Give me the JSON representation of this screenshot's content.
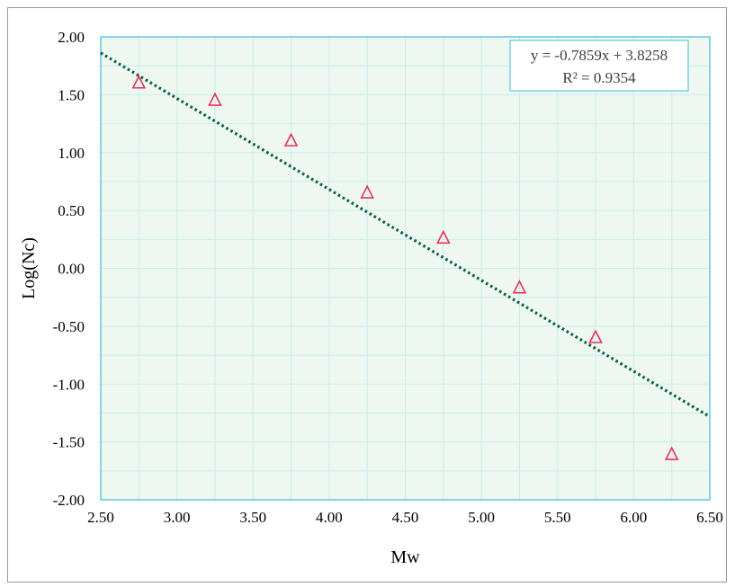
{
  "chart_data": {
    "type": "scatter",
    "title": "",
    "xlabel": "Mw",
    "ylabel": "Log(Nc)",
    "xlim": [
      2.5,
      6.5
    ],
    "ylim": [
      -2.0,
      2.0
    ],
    "x_ticks": [
      "2.50",
      "3.00",
      "3.50",
      "4.00",
      "4.50",
      "5.00",
      "5.50",
      "6.00",
      "6.50"
    ],
    "y_ticks": [
      "2.00",
      "1.50",
      "1.00",
      "0.50",
      "0.00",
      "-0.50",
      "-1.00",
      "-1.50",
      "-2.00"
    ],
    "grid": true,
    "series": [
      {
        "marker": "triangle-open",
        "color": "#e8325a",
        "x": [
          2.75,
          3.25,
          3.75,
          4.25,
          4.75,
          5.25,
          5.75,
          6.25
        ],
        "y": [
          1.6,
          1.45,
          1.1,
          0.65,
          0.26,
          -0.17,
          -0.6,
          -1.61
        ]
      }
    ],
    "trendline": {
      "type": "linear",
      "slope": -0.7859,
      "intercept": 3.8258,
      "color": "#0a6048",
      "style": "dotted"
    },
    "annotations": {
      "equation": "y = -0.7859x + 3.8258",
      "r_squared": "R² = 0.9354",
      "placement": "top-right"
    },
    "colors": {
      "plot_background": "#eef7f0",
      "grid": "#c9ecf3",
      "box_border": "#5fc9e0",
      "frame_border": "#9a9a9a"
    }
  }
}
